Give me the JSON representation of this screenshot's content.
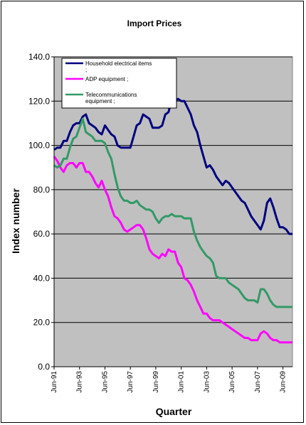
{
  "chart_data": {
    "type": "line",
    "title": "Import Prices",
    "xlabel": "Quarter",
    "ylabel": "Index number",
    "ylim": [
      0,
      140
    ],
    "yticks": [
      "0.0",
      "20.0",
      "40.0",
      "60.0",
      "80.0",
      "100.0",
      "120.0",
      "140.0"
    ],
    "xticks": [
      "Jun-91",
      "Jun-93",
      "Jun-95",
      "Jun-97",
      "Jun-99",
      "Jun-01",
      "Jun-03",
      "Jun-05",
      "Jun-07",
      "Jun-09"
    ],
    "grid": true,
    "legend_position": "top-left",
    "plot_background": "#c0c0c0",
    "x": [
      "Jun-91",
      "Sep-91",
      "Dec-91",
      "Mar-92",
      "Jun-92",
      "Sep-92",
      "Dec-92",
      "Mar-93",
      "Jun-93",
      "Sep-93",
      "Dec-93",
      "Mar-94",
      "Jun-94",
      "Sep-94",
      "Dec-94",
      "Mar-95",
      "Jun-95",
      "Sep-95",
      "Dec-95",
      "Mar-96",
      "Jun-96",
      "Sep-96",
      "Dec-96",
      "Mar-97",
      "Jun-97",
      "Sep-97",
      "Dec-97",
      "Mar-98",
      "Jun-98",
      "Sep-98",
      "Dec-98",
      "Mar-99",
      "Jun-99",
      "Sep-99",
      "Dec-99",
      "Mar-00",
      "Jun-00",
      "Sep-00",
      "Dec-00",
      "Mar-01",
      "Jun-01",
      "Sep-01",
      "Dec-01",
      "Mar-02",
      "Jun-02",
      "Sep-02",
      "Dec-02",
      "Mar-03",
      "Jun-03",
      "Sep-03",
      "Dec-03",
      "Mar-04",
      "Jun-04",
      "Sep-04",
      "Dec-04",
      "Mar-05",
      "Jun-05",
      "Sep-05",
      "Dec-05",
      "Mar-06",
      "Jun-06",
      "Sep-06",
      "Dec-06",
      "Mar-07",
      "Jun-07",
      "Sep-07",
      "Dec-07",
      "Mar-08",
      "Jun-08",
      "Sep-08",
      "Dec-08",
      "Mar-09",
      "Jun-09",
      "Sep-09",
      "Dec-09",
      "Mar-10"
    ],
    "series": [
      {
        "name": "Household electrical items ;",
        "color": "#000080",
        "values": [
          98,
          99,
          99,
          102,
          102,
          106,
          109,
          110,
          110,
          113,
          114,
          110,
          109,
          108,
          106,
          105,
          109,
          107,
          105,
          104,
          100,
          99,
          99,
          99,
          99,
          104,
          109,
          110,
          114,
          113,
          112,
          108,
          108,
          108,
          109,
          114,
          115,
          121,
          120,
          121,
          120,
          120,
          117,
          114,
          109,
          106,
          100,
          95,
          90,
          91,
          89,
          86,
          84,
          82,
          84,
          83,
          81,
          79,
          77,
          75,
          74,
          71,
          68,
          66,
          64,
          62,
          66,
          74,
          76,
          72,
          67,
          63,
          63,
          62,
          60,
          60
        ],
        "labels": []
      },
      {
        "name": "ADP equipment ;",
        "color": "#ff00ff",
        "values": [
          95,
          93,
          90,
          88,
          91,
          92,
          92,
          90,
          92,
          92,
          88,
          88,
          86,
          83,
          81,
          84,
          80,
          77,
          72,
          68,
          67,
          65,
          62,
          61,
          62,
          63,
          64,
          64,
          62,
          58,
          53,
          51,
          50,
          49,
          51,
          50,
          53,
          52,
          52,
          47,
          45,
          40,
          39,
          37,
          34,
          30,
          27,
          24,
          24,
          22,
          21,
          21,
          21,
          20,
          19,
          18,
          17,
          16,
          15,
          14,
          13,
          13,
          12,
          12,
          12,
          15,
          16,
          15,
          13,
          12,
          12,
          11,
          11,
          11,
          11,
          11
        ],
        "labels": []
      },
      {
        "name": "Telecommunications equipment ;",
        "color": "#339966",
        "values": [
          91,
          90,
          91,
          94,
          94,
          99,
          103,
          104,
          108,
          112,
          106,
          105,
          104,
          102,
          102,
          102,
          101,
          97,
          94,
          87,
          81,
          77,
          75,
          75,
          74,
          74,
          75,
          73,
          72,
          71,
          71,
          70,
          67,
          65,
          67,
          68,
          68,
          69,
          68,
          68,
          68,
          67,
          67,
          67,
          61,
          57,
          54,
          52,
          50,
          49,
          47,
          41,
          40,
          40,
          40,
          38,
          37,
          36,
          35,
          33,
          31,
          30,
          30,
          30,
          29,
          35,
          35,
          33,
          30,
          28,
          27,
          27,
          27,
          27,
          27,
          27
        ],
        "labels": []
      }
    ]
  }
}
